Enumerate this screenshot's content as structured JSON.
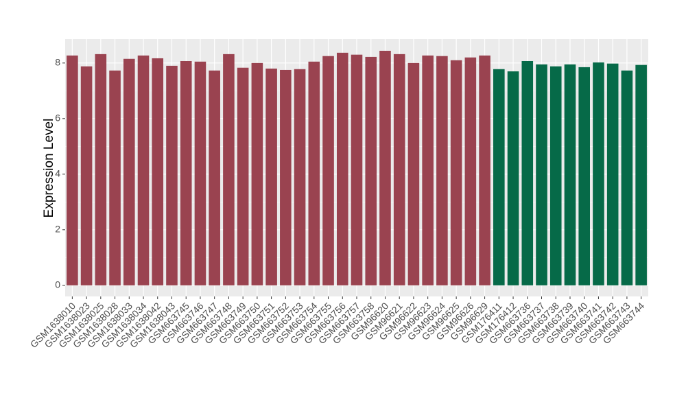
{
  "chart_data": {
    "type": "bar",
    "y_label": "Expression Level",
    "categories": [
      "GSM1638010",
      "GSM1638023",
      "GSM1638025",
      "GSM1638028",
      "GSM1638033",
      "GSM1638034",
      "GSM1638042",
      "GSM1638043",
      "GSM663745",
      "GSM663746",
      "GSM663747",
      "GSM663748",
      "GSM663749",
      "GSM663750",
      "GSM663751",
      "GSM663752",
      "GSM663753",
      "GSM663754",
      "GSM663755",
      "GSM663756",
      "GSM663757",
      "GSM663758",
      "GSM96620",
      "GSM96621",
      "GSM96622",
      "GSM96623",
      "GSM96624",
      "GSM96625",
      "GSM96626",
      "GSM96629",
      "GSM176411",
      "GSM176412",
      "GSM663736",
      "GSM663737",
      "GSM663738",
      "GSM663739",
      "GSM663740",
      "GSM663741",
      "GSM663742",
      "GSM663743",
      "GSM663744"
    ],
    "values": [
      8.27,
      7.88,
      8.32,
      7.73,
      8.15,
      8.27,
      8.17,
      7.9,
      8.07,
      8.05,
      7.73,
      8.32,
      7.83,
      8.0,
      7.8,
      7.75,
      7.78,
      8.05,
      8.25,
      8.37,
      8.3,
      8.22,
      8.44,
      8.32,
      8.0,
      8.27,
      8.25,
      8.1,
      8.2,
      8.27,
      7.78,
      7.7,
      8.07,
      7.95,
      7.88,
      7.95,
      7.85,
      8.02,
      7.98,
      7.73,
      7.93
    ],
    "colors": [
      "#9a4350",
      "#9a4350",
      "#9a4350",
      "#9a4350",
      "#9a4350",
      "#9a4350",
      "#9a4350",
      "#9a4350",
      "#9a4350",
      "#9a4350",
      "#9a4350",
      "#9a4350",
      "#9a4350",
      "#9a4350",
      "#9a4350",
      "#9a4350",
      "#9a4350",
      "#9a4350",
      "#9a4350",
      "#9a4350",
      "#9a4350",
      "#9a4350",
      "#9a4350",
      "#9a4350",
      "#9a4350",
      "#9a4350",
      "#9a4350",
      "#9a4350",
      "#9a4350",
      "#9a4350",
      "#066a48",
      "#066a48",
      "#066a48",
      "#066a48",
      "#066a48",
      "#066a48",
      "#066a48",
      "#066a48",
      "#066a48",
      "#066a48",
      "#066a48"
    ],
    "ylim": [
      -0.4,
      8.86
    ],
    "yticks": [
      0,
      2,
      4,
      6,
      8
    ],
    "grid": true
  }
}
